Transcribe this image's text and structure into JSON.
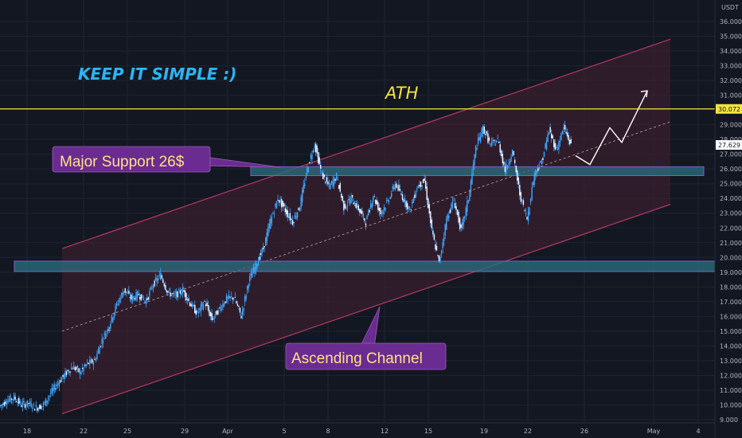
{
  "chart_data": {
    "type": "candlestick",
    "currency": "USDT",
    "x_tick_labels": [
      "18",
      "22",
      "25",
      "29",
      "Apr",
      "5",
      "8",
      "12",
      "15",
      "19",
      "22",
      "26",
      "May",
      "4"
    ],
    "y_tick_labels": [
      "9.000",
      "10.000",
      "11.000",
      "12.000",
      "13.000",
      "14.000",
      "15.000",
      "16.000",
      "17.000",
      "18.000",
      "19.000",
      "20.000",
      "21.000",
      "22.000",
      "23.000",
      "24.000",
      "25.000",
      "26.000",
      "27.000",
      "28.000",
      "29.000",
      "31.000",
      "32.000",
      "33.000",
      "34.000",
      "35.000",
      "36.000"
    ],
    "ylim": [
      8.7,
      36.5
    ],
    "price_path": [
      {
        "x": 0,
        "y": 9.9
      },
      {
        "x": 1,
        "y": 10.3
      },
      {
        "x": 2,
        "y": 10.5
      },
      {
        "x": 3,
        "y": 10.0
      },
      {
        "x": 4,
        "y": 10.1
      },
      {
        "x": 5,
        "y": 9.8
      },
      {
        "x": 6,
        "y": 10.0
      },
      {
        "x": 7,
        "y": 10.8
      },
      {
        "x": 8,
        "y": 11.5
      },
      {
        "x": 9,
        "y": 12.1
      },
      {
        "x": 10,
        "y": 12.6
      },
      {
        "x": 11,
        "y": 12.2
      },
      {
        "x": 12,
        "y": 12.8
      },
      {
        "x": 13,
        "y": 13.0
      },
      {
        "x": 14,
        "y": 14.4
      },
      {
        "x": 15,
        "y": 15.4
      },
      {
        "x": 16,
        "y": 16.8
      },
      {
        "x": 17,
        "y": 17.8
      },
      {
        "x": 18,
        "y": 17.2
      },
      {
        "x": 19,
        "y": 17.5
      },
      {
        "x": 20,
        "y": 17.0
      },
      {
        "x": 21,
        "y": 18.2
      },
      {
        "x": 22,
        "y": 18.8
      },
      {
        "x": 23,
        "y": 17.6
      },
      {
        "x": 24,
        "y": 17.4
      },
      {
        "x": 25,
        "y": 17.8
      },
      {
        "x": 26,
        "y": 16.9
      },
      {
        "x": 27,
        "y": 16.2
      },
      {
        "x": 28,
        "y": 17.0
      },
      {
        "x": 29,
        "y": 15.8
      },
      {
        "x": 30,
        "y": 16.5
      },
      {
        "x": 31,
        "y": 17.2
      },
      {
        "x": 32,
        "y": 17.3
      },
      {
        "x": 33,
        "y": 16.0
      },
      {
        "x": 34,
        "y": 18.4
      },
      {
        "x": 35,
        "y": 19.5
      },
      {
        "x": 36,
        "y": 20.6
      },
      {
        "x": 37,
        "y": 22.5
      },
      {
        "x": 38,
        "y": 24.0
      },
      {
        "x": 39,
        "y": 23.2
      },
      {
        "x": 40,
        "y": 22.4
      },
      {
        "x": 41,
        "y": 23.5
      },
      {
        "x": 42,
        "y": 26.0
      },
      {
        "x": 43,
        "y": 27.7
      },
      {
        "x": 44,
        "y": 25.6
      },
      {
        "x": 45,
        "y": 24.8
      },
      {
        "x": 46,
        "y": 25.5
      },
      {
        "x": 47,
        "y": 23.4
      },
      {
        "x": 48,
        "y": 24.0
      },
      {
        "x": 49,
        "y": 23.3
      },
      {
        "x": 50,
        "y": 22.4
      },
      {
        "x": 51,
        "y": 24.2
      },
      {
        "x": 52,
        "y": 23.0
      },
      {
        "x": 53,
        "y": 23.8
      },
      {
        "x": 54,
        "y": 25.0
      },
      {
        "x": 55,
        "y": 24.1
      },
      {
        "x": 56,
        "y": 23.2
      },
      {
        "x": 57,
        "y": 24.8
      },
      {
        "x": 58,
        "y": 25.2
      },
      {
        "x": 59,
        "y": 21.8
      },
      {
        "x": 60,
        "y": 19.6
      },
      {
        "x": 61,
        "y": 22.6
      },
      {
        "x": 62,
        "y": 23.9
      },
      {
        "x": 63,
        "y": 21.8
      },
      {
        "x": 64,
        "y": 24.0
      },
      {
        "x": 65,
        "y": 27.4
      },
      {
        "x": 66,
        "y": 28.8
      },
      {
        "x": 67,
        "y": 27.6
      },
      {
        "x": 68,
        "y": 28.0
      },
      {
        "x": 69,
        "y": 25.9
      },
      {
        "x": 70,
        "y": 27.2
      },
      {
        "x": 71,
        "y": 24.3
      },
      {
        "x": 72,
        "y": 22.6
      },
      {
        "x": 73,
        "y": 25.7
      },
      {
        "x": 74,
        "y": 26.5
      },
      {
        "x": 75,
        "y": 28.6
      },
      {
        "x": 76,
        "y": 27.3
      },
      {
        "x": 77,
        "y": 28.8
      },
      {
        "x": 78,
        "y": 27.6
      }
    ],
    "current_price_label": "27.629",
    "ath_price_label": "30.072",
    "ath_price": 30.072,
    "current_price": 27.629,
    "channel": {
      "lower": {
        "from": {
          "x": 0,
          "y": 9.4
        },
        "to": {
          "x": 100,
          "y": 23.6
        }
      },
      "upper": {
        "from": {
          "x": 0,
          "y": 20.6
        },
        "to": {
          "x": 100,
          "y": 34.8
        }
      }
    },
    "zones": [
      {
        "name": "major-support",
        "low": 25.55,
        "high": 26.15
      },
      {
        "name": "lower-support",
        "low": 19.05,
        "high": 19.75
      }
    ],
    "projection": [
      26.9,
      26.3,
      28.8,
      27.8,
      31.3
    ]
  },
  "colors": {
    "background": "#131722",
    "grid": "#1f2430",
    "candle": "#3ea6ff",
    "ath": "#f5e63c",
    "channel_fill": "#3a1f2d",
    "channel_line": "#b33a63",
    "zone_fill": "#2a6b7c",
    "zone_border": "#7b61c9",
    "callout_bg": "#6a2c91",
    "callout_text": "#ffe082",
    "keep_text": "#29b6f6",
    "price_tag_current_bg": "#ffffff"
  },
  "annotations": {
    "keep_simple": "KEEP IT SIMPLE :)",
    "ath": "ATH",
    "major_support": "Major Support 26$",
    "ascending_channel": "Ascending Channel"
  }
}
